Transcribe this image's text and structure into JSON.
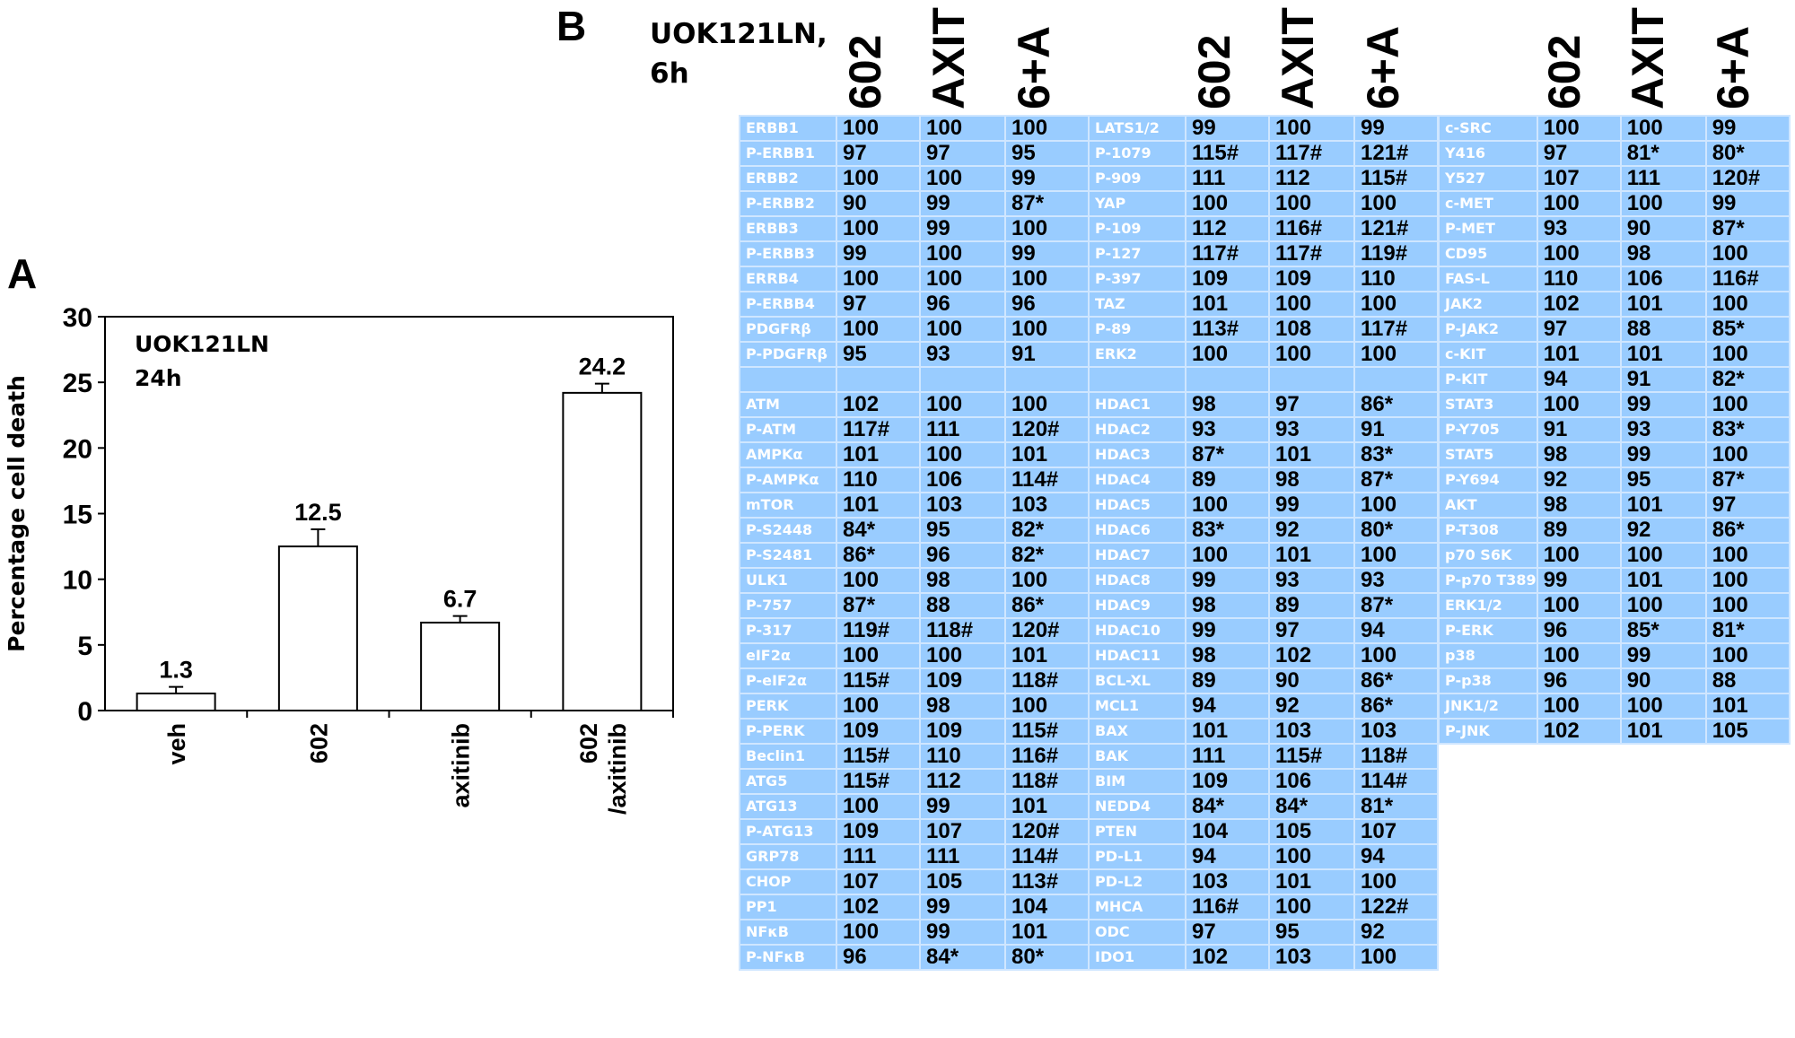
{
  "chart_data": {
    "type": "bar",
    "panel_label": "A",
    "annotation": [
      "UOK121LN",
      "24h"
    ],
    "ylabel": "Percentage cell death",
    "xlabel": "",
    "ylim": [
      0,
      30
    ],
    "yticks": [
      0,
      5,
      10,
      15,
      20,
      25,
      30
    ],
    "categories": [
      [
        "veh"
      ],
      [
        "602"
      ],
      [
        "axitinib"
      ],
      [
        "602",
        "/axitinib"
      ]
    ],
    "values": [
      1.3,
      12.5,
      6.7,
      24.2
    ],
    "value_labels": [
      "1.3",
      "12.5",
      "6.7",
      "24.2"
    ],
    "error_bars": [
      0.5,
      1.3,
      0.5,
      0.7
    ],
    "bar_color": "#ffffff",
    "grid": false
  },
  "table_panel": {
    "panel_label": "B",
    "header": [
      "UOK121LN,",
      "6h"
    ],
    "columns": [
      "602",
      "AXIT",
      "6+A"
    ],
    "colors": {
      "cell_bg": "#99ccff",
      "label_text": "#ffffff",
      "value_text": "#000000"
    },
    "tables": [
      {
        "rows": [
          [
            "ERBB1",
            "100",
            "100",
            "100"
          ],
          [
            "P-ERBB1",
            "97",
            "97",
            "95"
          ],
          [
            "ERBB2",
            "100",
            "100",
            "99"
          ],
          [
            "P-ERBB2",
            "90",
            "99",
            "87*"
          ],
          [
            "ERBB3",
            "100",
            "99",
            "100"
          ],
          [
            "P-ERBB3",
            "99",
            "100",
            "99"
          ],
          [
            "ERRB4",
            "100",
            "100",
            "100"
          ],
          [
            "P-ERBB4",
            "97",
            "96",
            "96"
          ],
          [
            "PDGFRβ",
            "100",
            "100",
            "100"
          ],
          [
            "P-PDGFRβ",
            "95",
            "93",
            "91"
          ],
          [
            "",
            "",
            "",
            ""
          ],
          [
            "ATM",
            "102",
            "100",
            "100"
          ],
          [
            "P-ATM",
            "117#",
            "111",
            "120#"
          ],
          [
            "AMPKα",
            "101",
            "100",
            "101"
          ],
          [
            "P-AMPKα",
            "110",
            "106",
            "114#"
          ],
          [
            "mTOR",
            "101",
            "103",
            "103"
          ],
          [
            "P-S2448",
            "84*",
            "95",
            "82*"
          ],
          [
            "P-S2481",
            "86*",
            "96",
            "82*"
          ],
          [
            "ULK1",
            "100",
            "98",
            "100"
          ],
          [
            "P-757",
            "87*",
            "88",
            "86*"
          ],
          [
            "P-317",
            "119#",
            "118#",
            "120#"
          ],
          [
            "eIF2α",
            "100",
            "100",
            "101"
          ],
          [
            "P-eIF2α",
            "115#",
            "109",
            "118#"
          ],
          [
            "PERK",
            "100",
            "98",
            "100"
          ],
          [
            "P-PERK",
            "109",
            "109",
            "115#"
          ],
          [
            "Beclin1",
            "115#",
            "110",
            "116#"
          ],
          [
            "ATG5",
            "115#",
            "112",
            "118#"
          ],
          [
            "ATG13",
            "100",
            "99",
            "101"
          ],
          [
            "P-ATG13",
            "109",
            "107",
            "120#"
          ],
          [
            "GRP78",
            "111",
            "111",
            "114#"
          ],
          [
            "CHOP",
            "107",
            "105",
            "113#"
          ],
          [
            "PP1",
            "102",
            "99",
            "104"
          ],
          [
            "NFκB",
            "100",
            "99",
            "101"
          ],
          [
            "P-NFκB",
            "96",
            "84*",
            "80*"
          ]
        ]
      },
      {
        "rows": [
          [
            "LATS1/2",
            "99",
            "100",
            "99"
          ],
          [
            "P-1079",
            "115#",
            "117#",
            "121#"
          ],
          [
            "P-909",
            "111",
            "112",
            "115#"
          ],
          [
            "YAP",
            "100",
            "100",
            "100"
          ],
          [
            "P-109",
            "112",
            "116#",
            "121#"
          ],
          [
            "P-127",
            "117#",
            "117#",
            "119#"
          ],
          [
            "P-397",
            "109",
            "109",
            "110"
          ],
          [
            "TAZ",
            "101",
            "100",
            "100"
          ],
          [
            "P-89",
            "113#",
            "108",
            "117#"
          ],
          [
            "ERK2",
            "100",
            "100",
            "100"
          ],
          [
            "",
            "",
            "",
            ""
          ],
          [
            "HDAC1",
            "98",
            "97",
            "86*"
          ],
          [
            "HDAC2",
            "93",
            "93",
            "91"
          ],
          [
            "HDAC3",
            "87*",
            "101",
            "83*"
          ],
          [
            "HDAC4",
            "89",
            "98",
            "87*"
          ],
          [
            "HDAC5",
            "100",
            "99",
            "100"
          ],
          [
            "HDAC6",
            "83*",
            "92",
            "80*"
          ],
          [
            "HDAC7",
            "100",
            "101",
            "100"
          ],
          [
            "HDAC8",
            "99",
            "93",
            "93"
          ],
          [
            "HDAC9",
            "98",
            "89",
            "87*"
          ],
          [
            "HDAC10",
            "99",
            "97",
            "94"
          ],
          [
            "HDAC11",
            "98",
            "102",
            "100"
          ],
          [
            "BCL-XL",
            "89",
            "90",
            "86*"
          ],
          [
            "MCL1",
            "94",
            "92",
            "86*"
          ],
          [
            "BAX",
            "101",
            "103",
            "103"
          ],
          [
            "BAK",
            "111",
            "115#",
            "118#"
          ],
          [
            "BIM",
            "109",
            "106",
            "114#"
          ],
          [
            "NEDD4",
            "84*",
            "84*",
            "81*"
          ],
          [
            "PTEN",
            "104",
            "105",
            "107"
          ],
          [
            "PD-L1",
            "94",
            "100",
            "94"
          ],
          [
            "PD-L2",
            "103",
            "101",
            "100"
          ],
          [
            "MHCA",
            "116#",
            "100",
            "122#"
          ],
          [
            "ODC",
            "97",
            "95",
            "92"
          ],
          [
            "IDO1",
            "102",
            "103",
            "100"
          ]
        ]
      },
      {
        "rows": [
          [
            "c-SRC",
            "100",
            "100",
            "99"
          ],
          [
            "Y416",
            "97",
            "81*",
            "80*"
          ],
          [
            "Y527",
            "107",
            "111",
            "120#"
          ],
          [
            "c-MET",
            "100",
            "100",
            "99"
          ],
          [
            "P-MET",
            "93",
            "90",
            "87*"
          ],
          [
            "CD95",
            "100",
            "98",
            "100"
          ],
          [
            "FAS-L",
            "110",
            "106",
            "116#"
          ],
          [
            "JAK2",
            "102",
            "101",
            "100"
          ],
          [
            "P-JAK2",
            "97",
            "88",
            "85*"
          ],
          [
            "c-KIT",
            "101",
            "101",
            "100"
          ],
          [
            "P-KIT",
            "94",
            "91",
            "82*"
          ],
          [
            "STAT3",
            "100",
            "99",
            "100"
          ],
          [
            "P-Y705",
            "91",
            "93",
            "83*"
          ],
          [
            "STAT5",
            "98",
            "99",
            "100"
          ],
          [
            "P-Y694",
            "92",
            "95",
            "87*"
          ],
          [
            "AKT",
            "98",
            "101",
            "97"
          ],
          [
            "P-T308",
            "89",
            "92",
            "86*"
          ],
          [
            "p70 S6K",
            "100",
            "100",
            "100"
          ],
          [
            "P-p70 T389",
            "99",
            "101",
            "100"
          ],
          [
            "ERK1/2",
            "100",
            "100",
            "100"
          ],
          [
            "P-ERK",
            "96",
            "85*",
            "81*"
          ],
          [
            "p38",
            "100",
            "99",
            "100"
          ],
          [
            "P-p38",
            "96",
            "90",
            "88"
          ],
          [
            "JNK1/2",
            "100",
            "100",
            "101"
          ],
          [
            "P-JNK",
            "102",
            "101",
            "105"
          ]
        ]
      }
    ]
  }
}
